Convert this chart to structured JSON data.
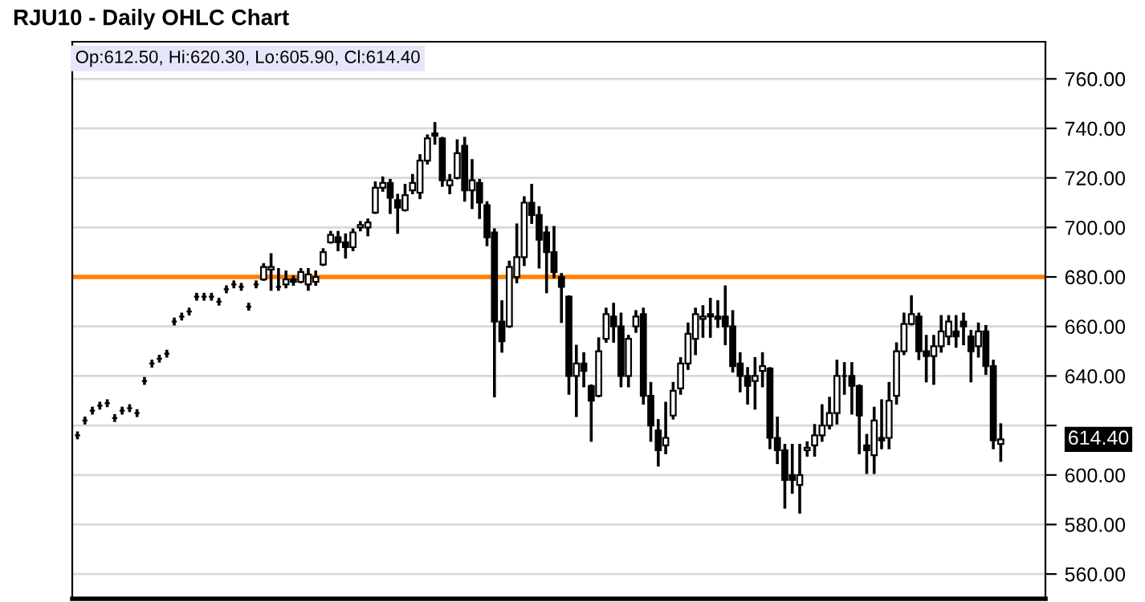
{
  "chart_data": {
    "type": "candlestick",
    "title": "RJU10 - Daily OHLC Chart",
    "annotations": [
      {
        "text": "Op:612.50, Hi:620.30, Lo:605.90, Cl:614.40"
      },
      "614.40"
    ],
    "categories": [
      null,
      null,
      null,
      null,
      null,
      null,
      null,
      null,
      null,
      null,
      null,
      null,
      null,
      null,
      null,
      null,
      null,
      null,
      null,
      null,
      null,
      null,
      null,
      null,
      null,
      null,
      null,
      null,
      null,
      null,
      null,
      null,
      null,
      null,
      null,
      null,
      null,
      null,
      null,
      null,
      null,
      null,
      null,
      null,
      null,
      null,
      null,
      null,
      null,
      null,
      null,
      null,
      null,
      null,
      null,
      null,
      null,
      null,
      null,
      null,
      null,
      null,
      null,
      null,
      null,
      null,
      null,
      null,
      null,
      null,
      null,
      null,
      null,
      null,
      null,
      null,
      null,
      null,
      null,
      null,
      null,
      null,
      null,
      null,
      null,
      null,
      null,
      null,
      null,
      null,
      null,
      null,
      null,
      null,
      null,
      null,
      null,
      null,
      null,
      null,
      null,
      null,
      null,
      null,
      null,
      null,
      null,
      null,
      null,
      null,
      null,
      null,
      null,
      null,
      null,
      null,
      null,
      null,
      null,
      null,
      null,
      null,
      null,
      null,
      null
    ],
    "color": "#000000",
    "ohlc": [
      [
        616,
        617,
        615,
        616
      ],
      [
        622,
        623,
        621,
        622
      ],
      [
        626,
        627,
        625,
        626
      ],
      [
        628,
        629,
        627,
        628
      ],
      [
        629,
        630,
        628,
        629
      ],
      [
        623,
        624,
        622,
        623
      ],
      [
        626,
        627,
        625,
        626
      ],
      [
        627,
        628,
        626,
        627
      ],
      [
        625,
        626,
        624,
        625
      ],
      [
        638,
        639,
        637,
        638
      ],
      [
        645,
        646,
        644,
        645
      ],
      [
        647,
        648,
        646,
        647
      ],
      [
        649,
        650,
        648,
        649
      ],
      [
        662,
        663,
        661,
        662
      ],
      [
        664,
        665,
        663,
        664
      ],
      [
        666,
        667,
        665,
        666
      ],
      [
        672,
        673,
        671,
        672
      ],
      [
        672,
        673,
        671,
        672
      ],
      [
        672,
        673,
        671,
        672
      ],
      [
        670,
        671,
        669,
        670
      ],
      [
        675,
        676,
        674,
        675
      ],
      [
        677,
        678,
        676,
        677
      ],
      [
        676,
        677,
        675,
        676
      ],
      [
        668,
        669,
        667,
        668
      ],
      [
        677,
        678,
        676,
        677
      ],
      [
        679,
        685,
        679,
        684
      ],
      [
        683,
        689,
        675,
        684
      ],
      [
        676,
        683,
        675,
        676
      ],
      [
        677,
        682,
        676,
        679
      ],
      [
        679,
        680,
        677,
        678
      ],
      [
        678,
        683,
        678,
        682
      ],
      [
        677,
        683,
        675,
        681
      ],
      [
        678,
        682,
        677,
        680
      ],
      [
        685,
        691,
        685,
        690
      ],
      [
        694,
        698,
        694,
        697
      ],
      [
        696,
        698,
        691,
        694
      ],
      [
        694,
        697,
        688,
        692
      ],
      [
        692,
        699,
        691,
        698
      ],
      [
        700,
        702,
        699,
        701
      ],
      [
        700,
        703,
        697,
        702
      ],
      [
        706,
        718,
        706,
        716
      ],
      [
        716,
        720,
        715,
        718
      ],
      [
        718,
        719,
        706,
        712
      ],
      [
        711,
        713,
        698,
        708
      ],
      [
        707,
        717,
        707,
        713
      ],
      [
        715,
        721,
        714,
        718
      ],
      [
        714,
        729,
        712,
        727
      ],
      [
        727,
        737,
        726,
        736
      ],
      [
        738,
        742,
        734,
        737
      ],
      [
        736,
        736,
        717,
        719
      ],
      [
        717,
        721,
        714,
        719
      ],
      [
        720,
        735,
        720,
        730
      ],
      [
        733,
        736,
        711,
        715
      ],
      [
        715,
        727,
        708,
        719
      ],
      [
        718,
        719,
        704,
        710
      ],
      [
        709,
        710,
        693,
        696
      ],
      [
        698,
        699,
        632,
        662
      ],
      [
        662,
        670,
        650,
        654
      ],
      [
        660,
        686,
        660,
        684
      ],
      [
        680,
        701,
        678,
        688
      ],
      [
        688,
        712,
        685,
        710
      ],
      [
        710,
        717,
        702,
        705
      ],
      [
        705,
        708,
        684,
        695
      ],
      [
        698,
        700,
        674,
        690
      ],
      [
        690,
        700,
        680,
        682
      ],
      [
        680,
        681,
        662,
        676
      ],
      [
        672,
        672,
        633,
        640
      ],
      [
        640,
        652,
        624,
        645
      ],
      [
        645,
        649,
        636,
        642
      ],
      [
        636,
        636,
        614,
        630
      ],
      [
        632,
        655,
        632,
        650
      ],
      [
        655,
        667,
        654,
        665
      ],
      [
        664,
        669,
        654,
        660
      ],
      [
        660,
        665,
        636,
        640
      ],
      [
        640,
        656,
        636,
        655
      ],
      [
        660,
        666,
        658,
        664
      ],
      [
        665,
        667,
        629,
        632
      ],
      [
        632,
        637,
        614,
        620
      ],
      [
        618,
        622,
        604,
        610
      ],
      [
        612,
        629,
        609,
        615
      ],
      [
        624,
        637,
        623,
        634
      ],
      [
        635,
        647,
        633,
        645
      ],
      [
        645,
        661,
        643,
        657
      ],
      [
        655,
        667,
        649,
        665
      ],
      [
        663,
        668,
        656,
        664
      ],
      [
        665,
        671,
        656,
        664
      ],
      [
        664,
        670,
        660,
        663
      ],
      [
        664,
        676,
        653,
        660
      ],
      [
        660,
        666,
        642,
        644
      ],
      [
        645,
        649,
        634,
        640
      ],
      [
        640,
        643,
        629,
        636
      ],
      [
        638,
        647,
        627,
        640
      ],
      [
        642,
        649,
        636,
        644
      ],
      [
        643,
        643,
        611,
        615
      ],
      [
        615,
        623,
        605,
        610
      ],
      [
        610,
        612,
        587,
        598
      ],
      [
        600,
        612,
        593,
        598
      ],
      [
        596,
        612,
        585,
        600
      ],
      [
        610,
        613,
        608,
        611
      ],
      [
        612,
        620,
        608,
        616
      ],
      [
        616,
        628,
        614,
        620
      ],
      [
        620,
        631,
        619,
        625
      ],
      [
        625,
        646,
        621,
        640
      ],
      [
        640,
        645,
        633,
        640
      ],
      [
        640,
        645,
        625,
        636
      ],
      [
        636,
        636,
        609,
        624
      ],
      [
        612,
        616,
        601,
        610
      ],
      [
        608,
        627,
        601,
        622
      ],
      [
        615,
        630,
        611,
        614
      ],
      [
        615,
        637,
        611,
        630
      ],
      [
        632,
        653,
        629,
        650
      ],
      [
        650,
        665,
        649,
        661
      ],
      [
        661,
        672,
        661,
        665
      ],
      [
        664,
        665,
        647,
        650
      ],
      [
        650,
        656,
        638,
        648
      ],
      [
        648,
        656,
        637,
        652
      ],
      [
        652,
        664,
        650,
        658
      ],
      [
        656,
        664,
        653,
        662
      ],
      [
        658,
        664,
        652,
        656
      ],
      [
        662,
        665,
        653,
        660
      ],
      [
        656,
        658,
        638,
        650
      ],
      [
        652,
        661,
        648,
        658
      ],
      [
        658,
        660,
        641,
        644
      ],
      [
        644,
        646,
        611,
        614
      ],
      [
        612.5,
        620.3,
        605.9,
        614.4
      ]
    ],
    "ylim": [
      550,
      775
    ],
    "yticks": [
      {
        "value": 560,
        "label": "560.00"
      },
      {
        "value": 580,
        "label": "580.00"
      },
      {
        "value": 600,
        "label": "600.00"
      },
      {
        "value": 620,
        "label": null
      },
      {
        "value": 640,
        "label": "640.00"
      },
      {
        "value": 660,
        "label": "660.00"
      },
      {
        "value": 680,
        "label": "680.00"
      },
      {
        "value": 700,
        "label": "700.00"
      },
      {
        "value": 720,
        "label": "720.00"
      },
      {
        "value": 740,
        "label": "740.00"
      },
      {
        "value": 760,
        "label": "760.00"
      }
    ],
    "ref_lines": [
      {
        "axis": "y",
        "value": 680,
        "color": "#ff8000"
      }
    ],
    "grid": "y",
    "tick_labels": "y"
  }
}
